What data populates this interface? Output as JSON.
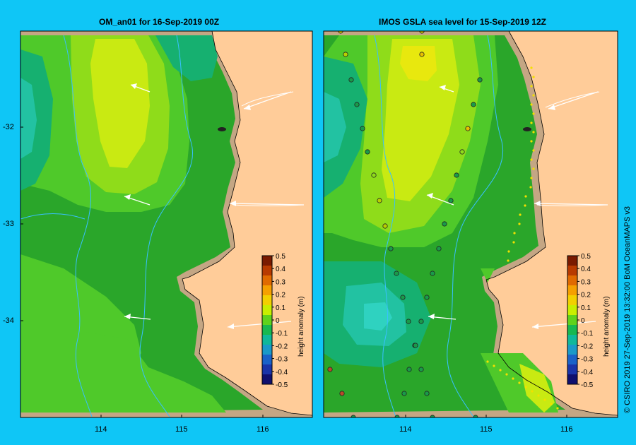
{
  "panels": [
    {
      "title": "OM_an01  for 16-Sep-2019 00Z"
    },
    {
      "title": "IMOS GSLA sea level  for 15-Sep-2019 12Z"
    }
  ],
  "y_axis": {
    "ticks": [
      "-32",
      "-33",
      "-34"
    ]
  },
  "x_axis": {
    "ticks": [
      "114",
      "115",
      "116"
    ]
  },
  "colorbar": {
    "label": "height anomaly (m)",
    "ticks": [
      "0.5",
      "0.4",
      "0.3",
      "0.2",
      "0.1",
      "0",
      "-0.1",
      "-0.2",
      "-0.3",
      "-0.4",
      "-0.5"
    ],
    "colors": [
      "#7a1a00",
      "#b83a00",
      "#e06a00",
      "#f5a000",
      "#f2d000",
      "#c8ee00",
      "#5fd21c",
      "#18b850",
      "#10b89a",
      "#1a9ac8",
      "#1a62c8",
      "#1a34a8",
      "#10106e"
    ]
  },
  "colors": {
    "background": "#0fc6f6",
    "land": "#ffcc99",
    "shelf": "#c4a684",
    "sea_base": "#2aa62a",
    "sea_level_0": "#4fc92a",
    "sea_level_1": "#8fdc1a",
    "sea_level_2": "#c9ea12",
    "sea_low_1": "#16b070",
    "sea_low_2": "#22c2a2",
    "contour_line": "#38c0ff"
  },
  "credit": "© CSIRO 2019   27-Sep-2019 13:32:00 BoM OceanMAPS v3"
}
